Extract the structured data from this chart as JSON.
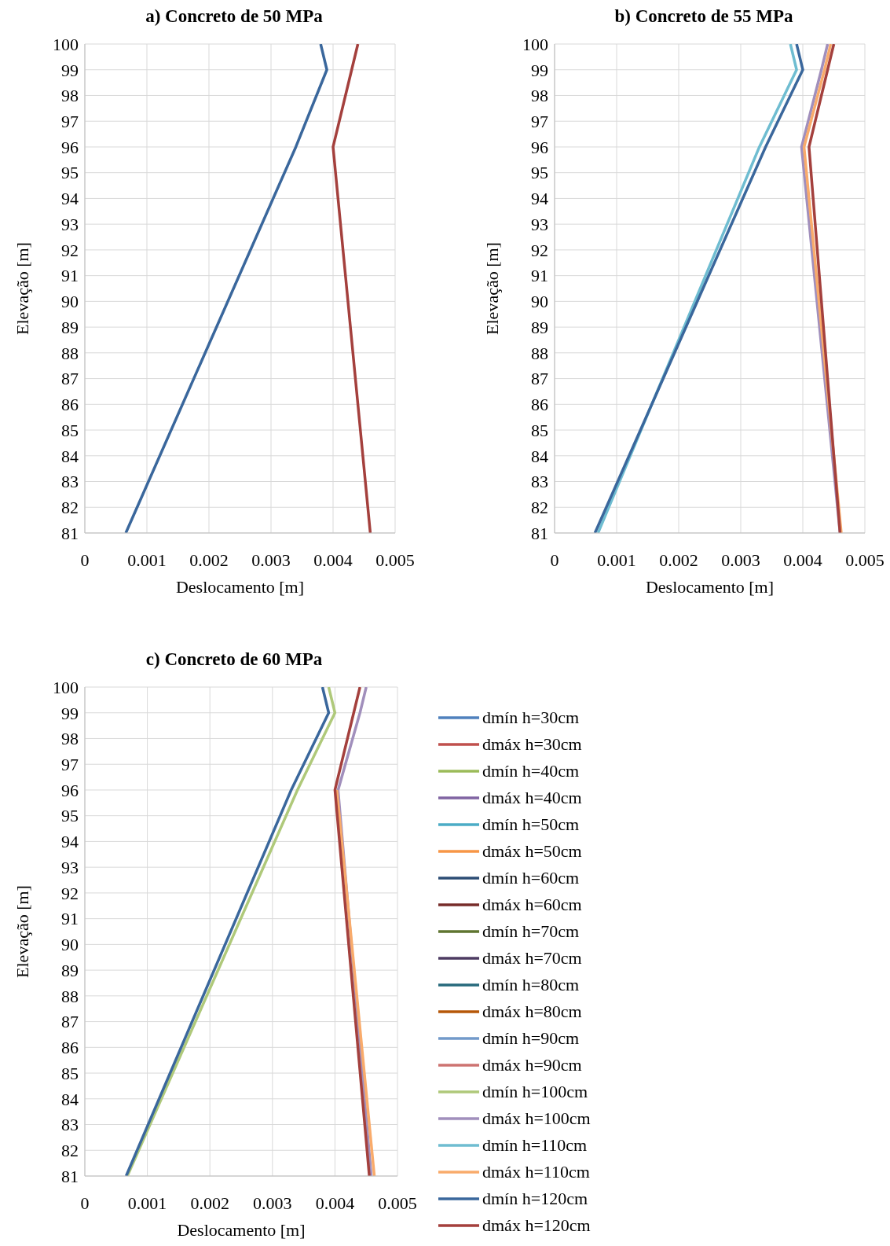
{
  "chart_data": [
    {
      "type": "line",
      "title": "a) Concreto de 50 MPa",
      "xlabel": "Deslocamento [m]",
      "ylabel": "Elevação [m]",
      "xlim": [
        0,
        0.005
      ],
      "xticks": [
        0,
        0.001,
        0.002,
        0.003,
        0.004,
        0.005
      ],
      "ylim": [
        81,
        100
      ],
      "yticks": [
        81,
        82,
        83,
        84,
        85,
        86,
        87,
        88,
        89,
        90,
        91,
        92,
        93,
        94,
        95,
        96,
        97,
        98,
        99,
        100
      ],
      "grid": true,
      "legend": false,
      "marker": "none",
      "line_style": "solid",
      "series": [
        {
          "color": "#3a679c",
          "x": [
            0.00066,
            0.0034,
            0.0039,
            0.0038
          ],
          "values": [
            81,
            96,
            99,
            100
          ]
        },
        {
          "color": "#a4403d",
          "x": [
            0.0046,
            0.004,
            0.0043,
            0.0044
          ],
          "values": [
            81,
            96,
            99,
            100
          ]
        }
      ]
    },
    {
      "type": "line",
      "title": "b) Concreto de 55 MPa",
      "xlabel": "Deslocamento [m]",
      "ylabel": "Elevação [m]",
      "xlim": [
        0,
        0.005
      ],
      "xticks": [
        0,
        0.001,
        0.002,
        0.003,
        0.004,
        0.005
      ],
      "ylim": [
        81,
        100
      ],
      "yticks": [
        81,
        82,
        83,
        84,
        85,
        86,
        87,
        88,
        89,
        90,
        91,
        92,
        93,
        94,
        95,
        96,
        97,
        98,
        99,
        100
      ],
      "grid": true,
      "legend": false,
      "marker": "none",
      "line_style": "solid",
      "series": [
        {
          "color": "#a18fbc",
          "x": [
            0.0046,
            0.00398,
            0.0043,
            0.0044
          ],
          "values": [
            81,
            96,
            99,
            100
          ]
        },
        {
          "color": "#6fbdd1",
          "x": [
            0.0007,
            0.0033,
            0.0039,
            0.0038
          ],
          "values": [
            81,
            96,
            99,
            100
          ]
        },
        {
          "color": "#f9ab6b",
          "x": [
            0.00462,
            0.00402,
            0.00435,
            0.00445
          ],
          "values": [
            81,
            96,
            99,
            100
          ]
        },
        {
          "color": "#3a679c",
          "x": [
            0.00065,
            0.0034,
            0.004,
            0.0039
          ],
          "values": [
            81,
            96,
            99,
            100
          ]
        },
        {
          "color": "#a4403d",
          "x": [
            0.0046,
            0.0041,
            0.0044,
            0.0045
          ],
          "values": [
            81,
            96,
            99,
            100
          ]
        }
      ]
    },
    {
      "type": "line",
      "title": "c) Concreto de 60 MPa",
      "xlabel": "Deslocamento [m]",
      "ylabel": "Elevação [m]",
      "xlim": [
        0,
        0.005
      ],
      "xticks": [
        0,
        0.001,
        0.002,
        0.003,
        0.004,
        0.005
      ],
      "ylim": [
        81,
        100
      ],
      "yticks": [
        81,
        82,
        83,
        84,
        85,
        86,
        87,
        88,
        89,
        90,
        91,
        92,
        93,
        94,
        95,
        96,
        97,
        98,
        99,
        100
      ],
      "grid": true,
      "legend": "right",
      "marker": "none",
      "line_style": "solid",
      "series": [
        {
          "name": "dmín h=30cm",
          "color": "#4f81bd",
          "x": [
            null,
            null,
            null,
            null
          ],
          "values": [
            null,
            null,
            null,
            null
          ]
        },
        {
          "name": "dmáx h=30cm",
          "color": "#c0504d",
          "x": [
            null,
            null,
            null,
            null
          ],
          "values": [
            null,
            null,
            null,
            null
          ]
        },
        {
          "name": "dmín h=40cm",
          "color": "#9bbb59",
          "x": [
            null,
            null,
            null,
            null
          ],
          "values": [
            null,
            null,
            null,
            null
          ]
        },
        {
          "name": "dmáx h=40cm",
          "color": "#8064a2",
          "x": [
            null,
            null,
            null,
            null
          ],
          "values": [
            null,
            null,
            null,
            null
          ]
        },
        {
          "name": "dmín h=50cm",
          "color": "#4bacc6",
          "x": [
            null,
            null,
            null,
            null
          ],
          "values": [
            null,
            null,
            null,
            null
          ]
        },
        {
          "name": "dmáx h=50cm",
          "color": "#f79646",
          "x": [
            null,
            null,
            null,
            null
          ],
          "values": [
            null,
            null,
            null,
            null
          ]
        },
        {
          "name": "dmín h=60cm",
          "color": "#2c4d75",
          "x": [
            null,
            null,
            null,
            null
          ],
          "values": [
            null,
            null,
            null,
            null
          ]
        },
        {
          "name": "dmáx h=60cm",
          "color": "#772c2a",
          "x": [
            null,
            null,
            null,
            null
          ],
          "values": [
            null,
            null,
            null,
            null
          ]
        },
        {
          "name": "dmín h=70cm",
          "color": "#5f7530",
          "x": [
            null,
            null,
            null,
            null
          ],
          "values": [
            null,
            null,
            null,
            null
          ]
        },
        {
          "name": "dmáx h=70cm",
          "color": "#4d3b62",
          "x": [
            null,
            null,
            null,
            null
          ],
          "values": [
            null,
            null,
            null,
            null
          ]
        },
        {
          "name": "dmín h=80cm",
          "color": "#276a7c",
          "x": [
            null,
            null,
            null,
            null
          ],
          "values": [
            null,
            null,
            null,
            null
          ]
        },
        {
          "name": "dmáx h=80cm",
          "color": "#b65708",
          "x": [
            null,
            null,
            null,
            null
          ],
          "values": [
            null,
            null,
            null,
            null
          ]
        },
        {
          "name": "dmín h=90cm",
          "color": "#729aca",
          "x": [
            null,
            null,
            null,
            null
          ],
          "values": [
            null,
            null,
            null,
            null
          ]
        },
        {
          "name": "dmáx h=90cm",
          "color": "#cd7371",
          "x": [
            null,
            null,
            null,
            null
          ],
          "values": [
            null,
            null,
            null,
            null
          ]
        },
        {
          "name": "dmín h=100cm",
          "color": "#afc97a",
          "x": [
            0.00068,
            0.0034,
            0.004,
            0.0039
          ],
          "values": [
            81,
            96,
            99,
            100
          ]
        },
        {
          "name": "dmáx h=100cm",
          "color": "#a18fbc",
          "x": [
            0.00458,
            0.00405,
            0.0044,
            0.0045
          ],
          "values": [
            81,
            96,
            99,
            100
          ]
        },
        {
          "name": "dmín h=110cm",
          "color": "#6fbdd1",
          "x": [
            null,
            null,
            null,
            null
          ],
          "values": [
            null,
            null,
            null,
            null
          ]
        },
        {
          "name": "dmáx h=110cm",
          "color": "#f9ab6b",
          "x": [
            0.00463,
            0.00403,
            null,
            null
          ],
          "values": [
            81,
            96,
            null,
            null
          ]
        },
        {
          "name": "dmín h=120cm",
          "color": "#3a679c",
          "x": [
            0.00066,
            0.0033,
            0.0039,
            0.0038
          ],
          "values": [
            81,
            96,
            99,
            100
          ]
        },
        {
          "name": "dmáx h=120cm",
          "color": "#a4403d",
          "x": [
            0.00455,
            0.004,
            0.0043,
            0.0044
          ],
          "values": [
            81,
            96,
            99,
            100
          ]
        }
      ]
    }
  ]
}
